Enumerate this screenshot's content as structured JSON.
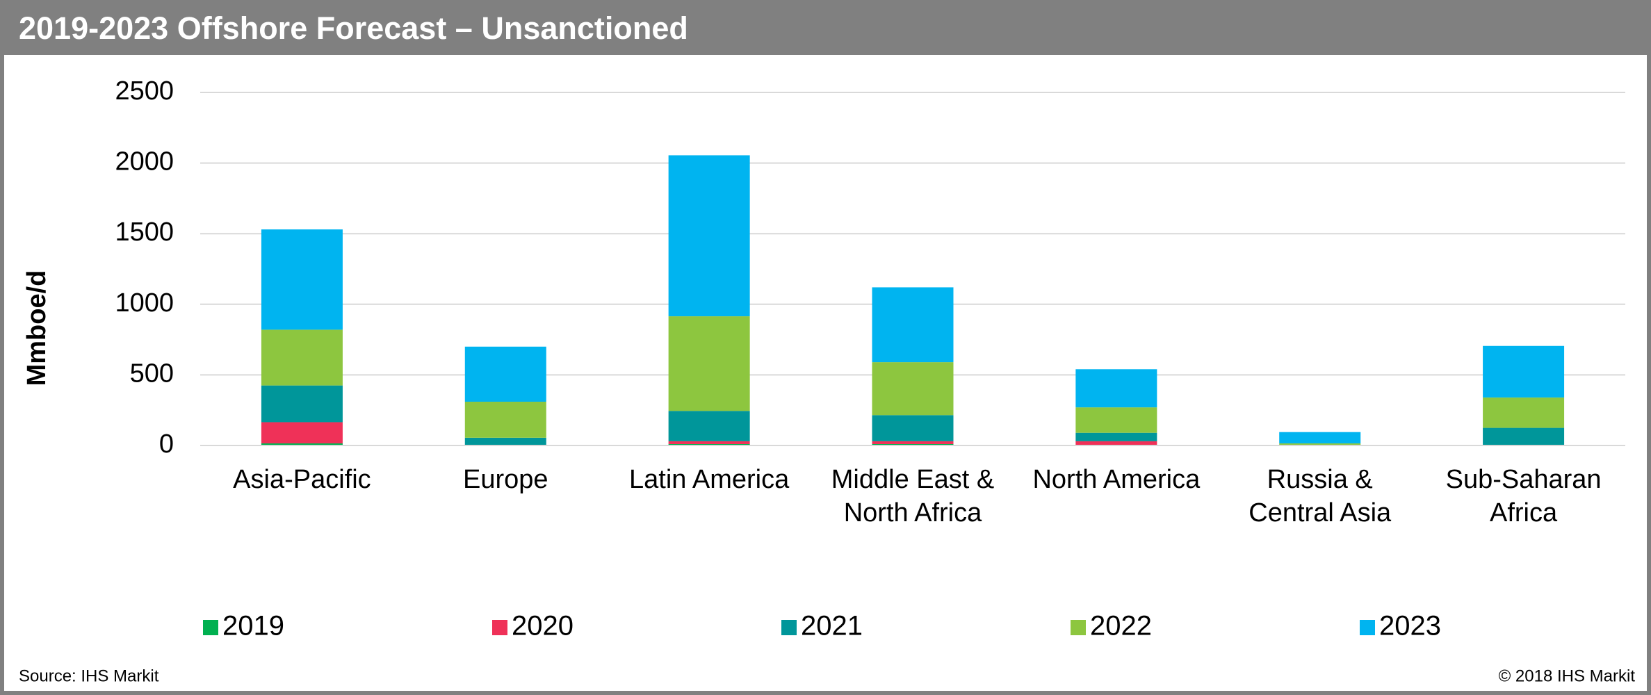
{
  "chart_data": {
    "type": "stacked_bar",
    "title": "2019-2023 Offshore Forecast – Unsanctioned",
    "y_label": "Mmboe/d",
    "source": "Source: IHS Markit",
    "copyright": "© 2018 IHS Markit",
    "categories": [
      "Asia-Pacific",
      "Europe",
      "Latin America",
      "Middle East & North Africa",
      "North America",
      "Russia & Central Asia",
      "Sub-Saharan Africa"
    ],
    "series": [
      {
        "name": "2019",
        "color": "#00b050",
        "values": [
          15,
          0,
          10,
          10,
          5,
          0,
          5
        ]
      },
      {
        "name": "2020",
        "color": "#ef3158",
        "values": [
          150,
          5,
          20,
          20,
          25,
          0,
          0
        ]
      },
      {
        "name": "2021",
        "color": "#00969a",
        "values": [
          260,
          50,
          215,
          185,
          60,
          5,
          120
        ]
      },
      {
        "name": "2022",
        "color": "#8dc63f",
        "values": [
          395,
          255,
          670,
          375,
          180,
          10,
          215
        ]
      },
      {
        "name": "2023",
        "color": "#00b4f0",
        "values": [
          710,
          390,
          1140,
          530,
          270,
          80,
          365
        ]
      }
    ],
    "ylim": [
      0,
      2500
    ],
    "yticks": [
      0,
      500,
      1000,
      1500,
      2000,
      2500
    ],
    "grid": true
  }
}
